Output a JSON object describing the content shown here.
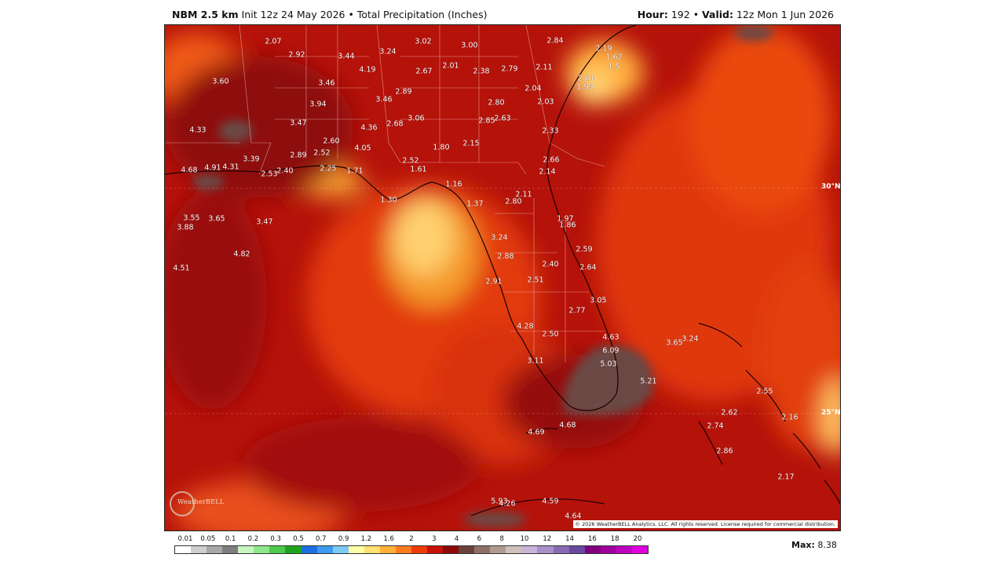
{
  "header": {
    "model": "NBM 2.5 km",
    "init": "Init 12z 24 May 2026",
    "bullet": "•",
    "product": "Total Precipitation (Inches)",
    "hour_label": "Hour:",
    "hour": "192",
    "valid_label": "Valid:",
    "valid": "12z Mon 1 Jun 2026"
  },
  "map": {
    "latitude_labels": [
      "30°N",
      "25°N"
    ],
    "copyright": "© 2026 WeatherBELL Analytics, LLC. All rights reserved. License required for commercial distribution.",
    "logo_text": "WeatherBELL",
    "value_labels": [
      "2.07",
      "2.92",
      "3.44",
      "3.24",
      "3.02",
      "3.00",
      "2.84",
      "2.19",
      "1.62",
      "1.5",
      "4.19",
      "2.67",
      "2.01",
      "2.38",
      "2.79",
      "2.11",
      "2.01",
      "1.99",
      "3.60",
      "3.46",
      "2.89",
      "2.04",
      "3.94",
      "3.46",
      "2.80",
      "2.03",
      "3.47",
      "3.06",
      "2.85",
      "2.63",
      "4.36",
      "2.68",
      "2.33",
      "4.33",
      "2.60",
      "1.80",
      "2.15",
      "2.89",
      "2.52",
      "4.05",
      "2.66",
      "4.68",
      "4.91",
      "4.31",
      "3.39",
      "2.53",
      "2.40",
      "2.25",
      "1.71",
      "2.52",
      "1.61",
      "2.14",
      "1.16",
      "2.11",
      "1.30",
      "2.80",
      "1.37",
      "1.97",
      "1.86",
      "3.55",
      "3.65",
      "3.88",
      "3.47",
      "3.24",
      "2.59",
      "4.82",
      "2.88",
      "2.40",
      "2.64",
      "4.51",
      "2.91",
      "2.51",
      "3.05",
      "2.77",
      "4.28",
      "2.50",
      "4.63",
      "3.65",
      "3.24",
      "6.09",
      "3.11",
      "5.03",
      "5.21",
      "2.55",
      "2.62",
      "2.16",
      "4.69",
      "4.68",
      "2.74",
      "2.86",
      "2.17",
      "5.93",
      "4.26",
      "4.59",
      "4.64"
    ]
  },
  "legend": {
    "labels": [
      "0.01",
      "0.05",
      "0.1",
      "0.2",
      "0.3",
      "0.5",
      "0.7",
      "0.9",
      "1.2",
      "1.6",
      "2",
      "3",
      "4",
      "6",
      "8",
      "10",
      "12",
      "14",
      "16",
      "18",
      "20"
    ],
    "colors": [
      "#ffffff",
      "#cfcfcf",
      "#a8a8a8",
      "#7e7e7e",
      "#c8f5c0",
      "#8ee88a",
      "#4ccc4a",
      "#1ea51e",
      "#1c6fe0",
      "#3a9bf0",
      "#7ccaf5",
      "#ffffa8",
      "#ffe070",
      "#ffb038",
      "#ff7a1e",
      "#f03a0a",
      "#c8100a",
      "#8c0a0a",
      "#6a4038",
      "#8e7068",
      "#b09a92",
      "#d0c0bc",
      "#c8b4d8",
      "#a890c8",
      "#8a6ab4",
      "#6a48a0",
      "#800080",
      "#a000a0",
      "#c000c0",
      "#e000e0"
    ],
    "max_label": "Max:",
    "max_value": "8.38"
  }
}
